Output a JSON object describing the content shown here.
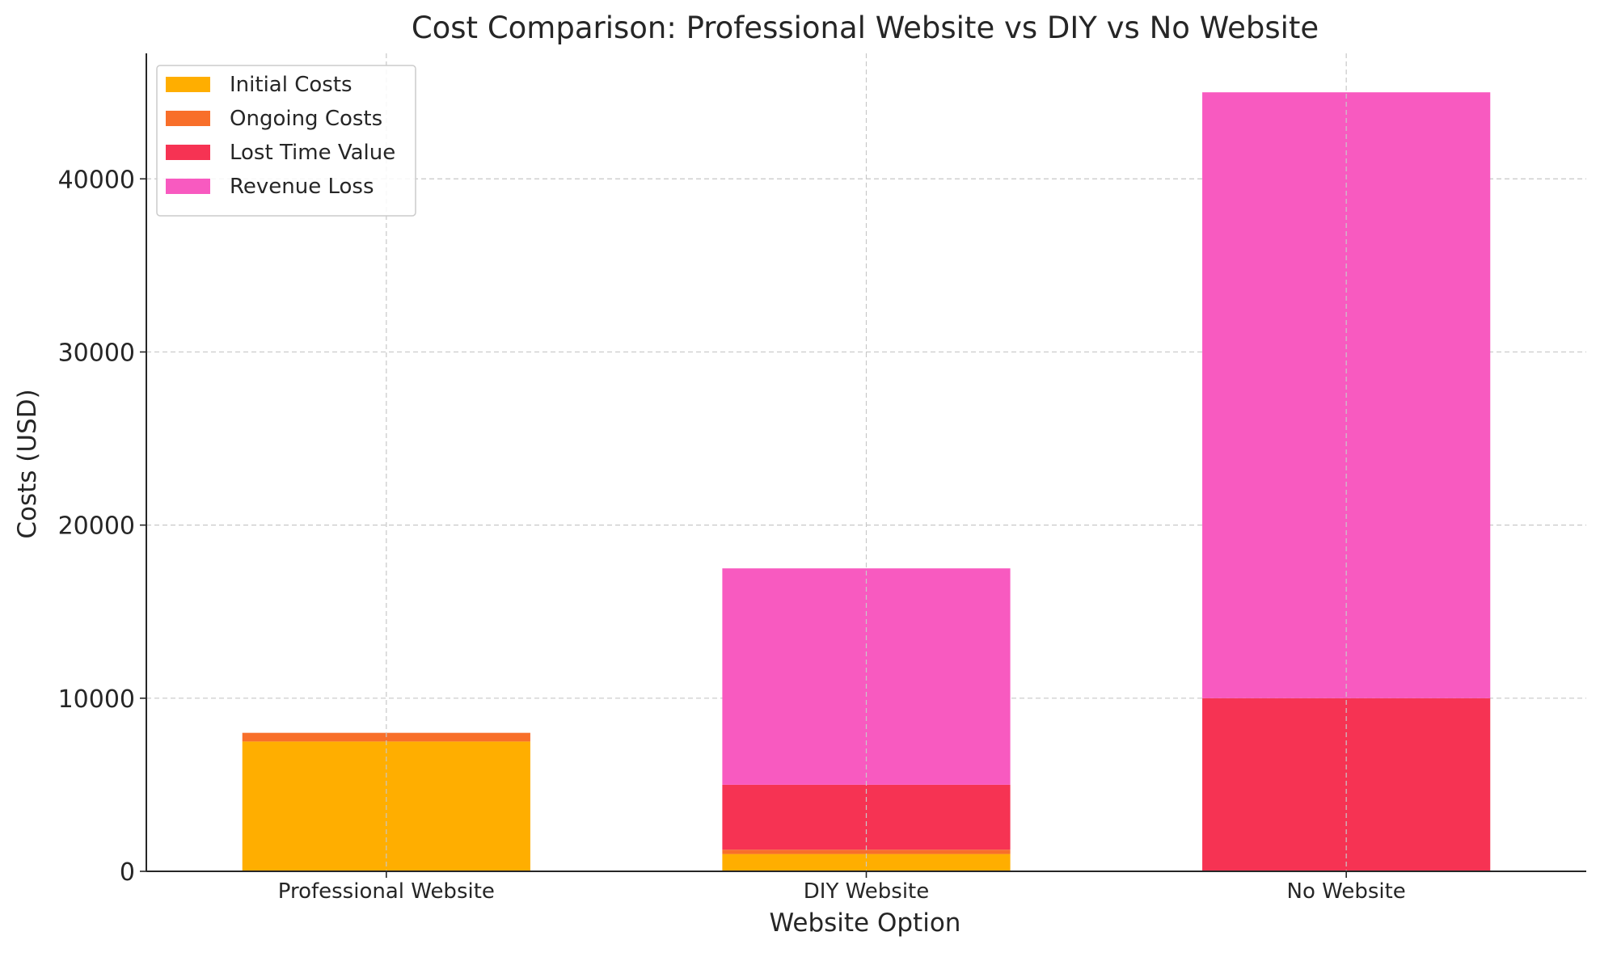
{
  "chart_data": {
    "type": "bar",
    "stacked": true,
    "title": "Cost Comparison: Professional Website vs DIY vs No Website",
    "xlabel": "Website Option",
    "ylabel": "Costs (USD)",
    "categories": [
      "Professional Website",
      "DIY Website",
      "No Website"
    ],
    "series": [
      {
        "name": "Initial Costs",
        "color": "#ffae00",
        "values": [
          7500,
          1000,
          0
        ]
      },
      {
        "name": "Ongoing Costs",
        "color": "#f86f2a",
        "values": [
          500,
          250,
          0
        ]
      },
      {
        "name": "Lost Time Value",
        "color": "#f63353",
        "values": [
          0,
          3750,
          10000
        ]
      },
      {
        "name": "Revenue Loss",
        "color": "#f85ac0",
        "values": [
          0,
          12500,
          35000
        ]
      }
    ],
    "ylim": [
      0,
      47250
    ],
    "yticks": [
      0,
      10000,
      20000,
      30000,
      40000
    ],
    "grid": true,
    "legend_position": "top-left"
  }
}
